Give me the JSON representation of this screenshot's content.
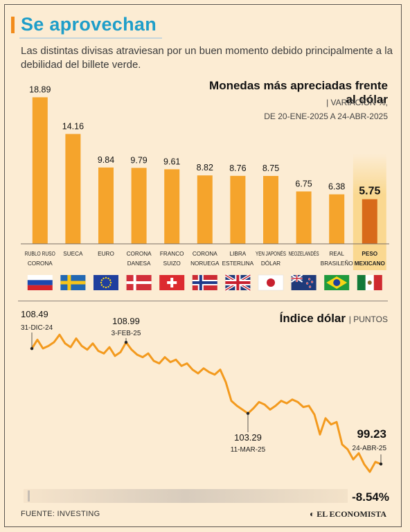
{
  "header": {
    "title": "Se aprovechan",
    "subtitle": "Las distintas divisas atraviesan por un buen momento debido principalmente a la debilidad del billete verde."
  },
  "bar_section": {
    "heading": "Monedas más apreciadas frente al dólar",
    "unit": "| VARIACIÓN %,",
    "date_range": "DE 20-ENE-2025 A 24-ABR-2025"
  },
  "line_section": {
    "heading": "Índice dólar",
    "unit": "| PUNTOS",
    "change": "-8.54%"
  },
  "footer": {
    "source": "FUENTE: INVESTING",
    "brand": "◐ EL ECONOMISTA"
  },
  "colors": {
    "bar": "#f5a42c",
    "highlight_bar": "#d86a1a",
    "highlight_bg": "#f9d27a",
    "line": "#f39a1e",
    "title": "#1f9ec9"
  },
  "chart_data": [
    {
      "type": "bar",
      "categories": [
        "RUBLO RUSO CORONA",
        "SUECA",
        "EURO",
        "CORONA DANESA",
        "FRANCO SUIZO",
        "CORONA NORUEGA",
        "LIBRA ESTERLINA",
        "YEN JAPONÉS DÓLAR",
        "NEOZELANDÉS",
        "REAL BRASILEÑO",
        "PESO MEXICANO"
      ],
      "label_lines": [
        [
          "RUBLO RUSO",
          "CORONA"
        ],
        [
          "SUECA"
        ],
        [
          "EURO"
        ],
        [
          "CORONA",
          "DANESA"
        ],
        [
          "FRANCO",
          "SUIZO"
        ],
        [
          "CORONA",
          "NORUEGA"
        ],
        [
          "LIBRA",
          "ESTERLINA"
        ],
        [
          "YEN JAPONÉS",
          "DÓLAR"
        ],
        [
          "NEOZELANDÉS"
        ],
        [
          "REAL",
          "BRASILEÑO"
        ],
        [
          "PESO",
          "MEXICANO"
        ]
      ],
      "values": [
        18.89,
        14.16,
        9.84,
        9.79,
        9.61,
        8.82,
        8.76,
        8.75,
        6.75,
        6.38,
        5.75
      ],
      "value_labels": [
        "18.89",
        "14.16",
        "9.84",
        "9.79",
        "9.61",
        "8.82",
        "8.76",
        "8.75",
        "6.75",
        "6.38",
        "5.75"
      ],
      "flags": [
        "russia-flag",
        "sweden-flag",
        "eu-flag",
        "denmark-flag",
        "switzerland-flag",
        "norway-flag",
        "uk-flag",
        "japan-flag",
        "new-zealand-flag",
        "brazil-flag",
        "mexico-flag"
      ],
      "highlight": "PESO MEXICANO",
      "ylim": [
        0,
        20
      ]
    },
    {
      "type": "line",
      "title": "Índice dólar",
      "ylim": [
        97,
        112
      ],
      "values": [
        108.49,
        109.2,
        108.5,
        108.7,
        109.0,
        109.6,
        108.9,
        108.6,
        109.3,
        108.7,
        108.4,
        108.9,
        108.3,
        108.1,
        108.6,
        107.9,
        108.2,
        108.99,
        108.4,
        108.0,
        107.8,
        108.1,
        107.5,
        107.3,
        107.8,
        107.4,
        107.6,
        107.1,
        107.3,
        106.8,
        106.5,
        106.9,
        106.6,
        106.4,
        106.8,
        105.8,
        104.3,
        103.9,
        103.6,
        103.29,
        103.7,
        104.2,
        104.0,
        103.6,
        103.9,
        104.3,
        104.1,
        104.4,
        104.2,
        103.8,
        103.9,
        103.2,
        101.6,
        102.9,
        102.4,
        102.6,
        100.8,
        100.4,
        99.6,
        100.1,
        99.2,
        98.6,
        99.4,
        99.23
      ],
      "annotations": [
        {
          "value": "108.49",
          "date": "31-DIC-24",
          "index": 0
        },
        {
          "value": "108.99",
          "date": "3-FEB-25",
          "index": 17
        },
        {
          "value": "103.29",
          "date": "11-MAR-25",
          "index": 39
        },
        {
          "value": "99.23",
          "date": "24-ABR-25",
          "index": 63
        }
      ]
    }
  ]
}
